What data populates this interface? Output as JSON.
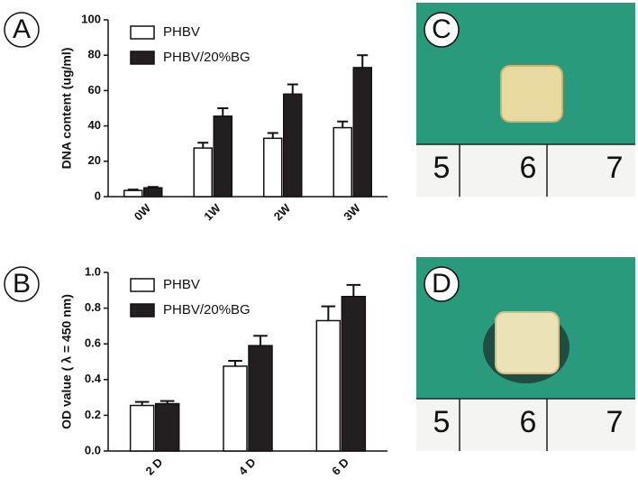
{
  "chart_data": [
    {
      "type": "bar",
      "panel_label": "A",
      "y_label": "DNA content (ug/ml)",
      "categories": [
        "0W",
        "1W",
        "2W",
        "3W"
      ],
      "series": [
        {
          "name": "PHBV",
          "color": "#ffffff",
          "values": [
            3.5,
            27.5,
            33,
            39
          ],
          "errors": [
            0.5,
            3,
            3,
            3.5
          ]
        },
        {
          "name": "PHBV/20%BG",
          "color": "#231f20",
          "values": [
            5,
            45.5,
            58,
            73
          ],
          "errors": [
            0.5,
            4.5,
            5.5,
            7
          ]
        }
      ],
      "ylim": [
        0,
        100
      ],
      "yticks": [
        0,
        20,
        40,
        60,
        80,
        100
      ],
      "legend": "upper left"
    },
    {
      "type": "bar",
      "panel_label": "B",
      "y_label": "OD value ( λ = 450 nm)",
      "categories": [
        "2 D",
        "4 D",
        "6 D"
      ],
      "series": [
        {
          "name": "PHBV",
          "color": "#ffffff",
          "values": [
            0.255,
            0.475,
            0.73
          ],
          "errors": [
            0.02,
            0.03,
            0.08
          ]
        },
        {
          "name": "PHBV/20%BG",
          "color": "#231f20",
          "values": [
            0.265,
            0.59,
            0.865
          ],
          "errors": [
            0.015,
            0.055,
            0.065
          ]
        }
      ],
      "ylim": [
        0,
        1
      ],
      "yticks": [
        {
          "value": 0,
          "label": "0.0"
        },
        0.2,
        0.4,
        0.6,
        0.8,
        {
          "value": 1,
          "label": "1.0"
        }
      ],
      "legend": "upper left"
    }
  ],
  "photos": [
    {
      "panel_label": "C",
      "ruler": [
        "5",
        "6",
        "7"
      ]
    },
    {
      "panel_label": "D",
      "ruler": [
        "5",
        "6",
        "7"
      ]
    }
  ]
}
